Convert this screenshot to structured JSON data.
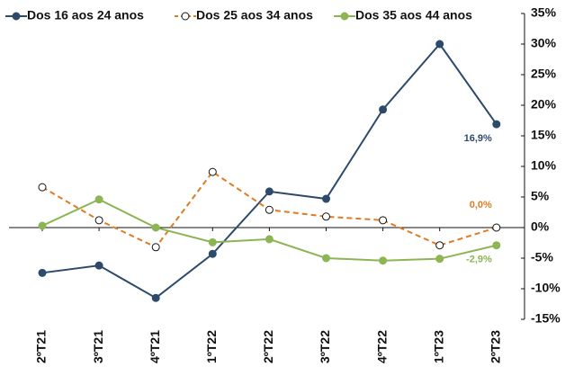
{
  "chart_data": {
    "type": "line",
    "categories": [
      "2ºT21",
      "3ºT21",
      "4ºT21",
      "1ºT22",
      "2ºT22",
      "3ºT22",
      "4ºT22",
      "1ºT23",
      "2ºT23"
    ],
    "series": [
      {
        "name": "Dos 16 aos 24 anos",
        "color": "#2e4a6b",
        "marker": "filled",
        "dashed": false,
        "values": [
          -7.4,
          -6.2,
          -11.5,
          -4.3,
          5.9,
          4.7,
          19.3,
          30.0,
          16.9
        ],
        "value_labels": [
          null,
          null,
          null,
          null,
          null,
          null,
          null,
          null,
          "16,9%"
        ]
      },
      {
        "name": "Dos 25 aos 34 anos",
        "color": "#e07b22",
        "marker": "open",
        "dashed": true,
        "values": [
          6.6,
          1.2,
          -3.2,
          9.1,
          2.9,
          1.8,
          1.2,
          -2.9,
          0.0
        ],
        "value_labels": [
          null,
          null,
          null,
          null,
          null,
          null,
          null,
          null,
          "0,0%"
        ]
      },
      {
        "name": "Dos 35 aos 44 anos",
        "color": "#8db554",
        "marker": "filled",
        "dashed": false,
        "values": [
          0.3,
          4.6,
          0.0,
          -2.4,
          -1.9,
          -5.0,
          -5.4,
          -5.1,
          -2.9
        ],
        "value_labels": [
          null,
          null,
          null,
          null,
          null,
          null,
          null,
          null,
          "-2,9%"
        ]
      }
    ],
    "ylim": [
      -15,
      35
    ],
    "yticks": [
      {
        "value": 35,
        "label": "35%"
      },
      {
        "value": 30,
        "label": "30%"
      },
      {
        "value": 25,
        "label": "25%"
      },
      {
        "value": 20,
        "label": "20%"
      },
      {
        "value": 15,
        "label": "15%"
      },
      {
        "value": 10,
        "label": "10%"
      },
      {
        "value": 5,
        "label": "5%"
      },
      {
        "value": 0,
        "label": "0%"
      },
      {
        "value": -5,
        "label": "-5%"
      },
      {
        "value": -10,
        "label": "-10%"
      },
      {
        "value": -15,
        "label": "-15%"
      }
    ],
    "legend": "top-left"
  }
}
